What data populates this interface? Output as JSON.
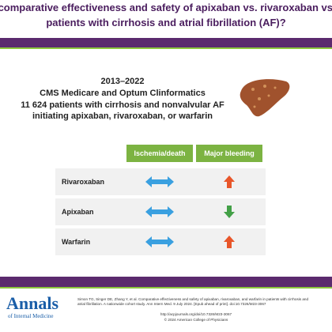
{
  "header": {
    "title_line1": "the comparative effectiveness and safety of apixaban vs. rivaroxaban vs. wa",
    "title_line2": "patients with cirrhosis and atrial fibrillation (AF)?"
  },
  "study": {
    "period": "2013–2022",
    "sources": "CMS Medicare and Optum Clinformatics",
    "population_line1": "11 624 patients with cirrhosis and nonvalvular AF",
    "population_line2": "initiating apixaban, rivaroxaban, or warfarin"
  },
  "table": {
    "columns": [
      "Ischemia/death",
      "Major bleeding"
    ],
    "rows": [
      "Rivaroxaban",
      "Apixaban",
      "Warfarin"
    ]
  },
  "footer": {
    "logo_main": "Annals",
    "logo_sub": "of Internal Medicine",
    "citation": "Simon TG, Singer DE, Zhang Y, et al. Comparative effectiveness and safety of apixaban, rivaroxaban, and warfarin in patients with cirrhosis and atrial fibrillation. A nationwide cohort study. Ann Intern Med. 9 July 2024. [Epub ahead of print]. doi:10.7326/M23-3067",
    "url": "http://acpjournals.org/doi/10.7326/M23-3067",
    "copyright": "© 2024 American College of Physicians"
  }
}
